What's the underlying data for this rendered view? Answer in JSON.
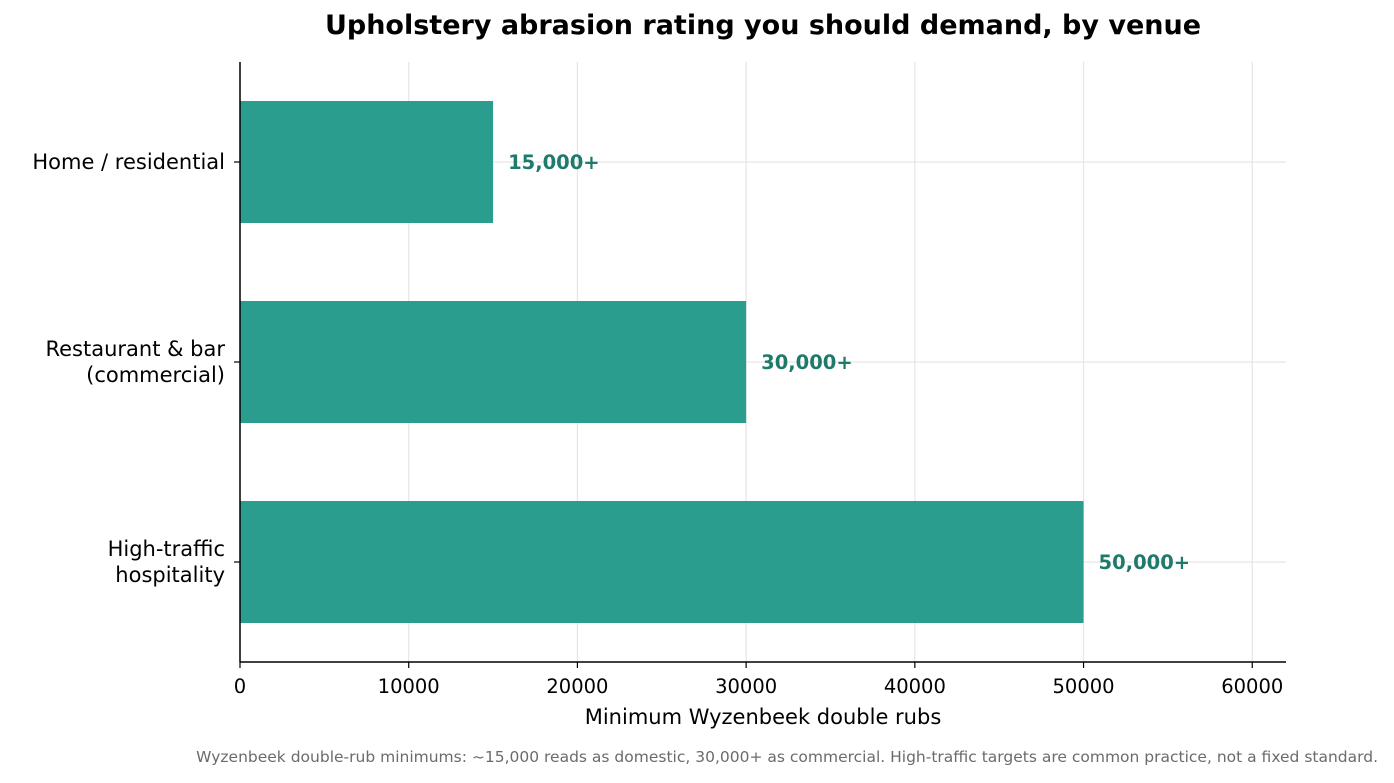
{
  "chart_data": {
    "type": "bar",
    "orientation": "horizontal",
    "title": "Upholstery abrasion rating you should demand, by venue",
    "xlabel": "Minimum Wyzenbeek double rubs",
    "ylabel": "",
    "categories": [
      [
        "Home / residential"
      ],
      [
        "Restaurant & bar",
        "(commercial)"
      ],
      [
        "High-traffic",
        "hospitality"
      ]
    ],
    "values": [
      15000,
      30000,
      50000
    ],
    "value_labels": [
      "15,000+",
      "30,000+",
      "50,000+"
    ],
    "xlim": [
      0,
      62000
    ],
    "xticks": [
      0,
      10000,
      20000,
      30000,
      40000,
      50000,
      60000
    ],
    "xtick_labels": [
      "0",
      "10000",
      "20000",
      "30000",
      "40000",
      "50000",
      "60000"
    ],
    "grid": true,
    "bar_color": "#2a9d8f",
    "label_color": "#1f7a6c"
  },
  "footnote": "Wyzenbeek double-rub minimums: ~15,000 reads as domestic, 30,000+ as commercial. High-traffic targets are common practice, not a fixed standard."
}
